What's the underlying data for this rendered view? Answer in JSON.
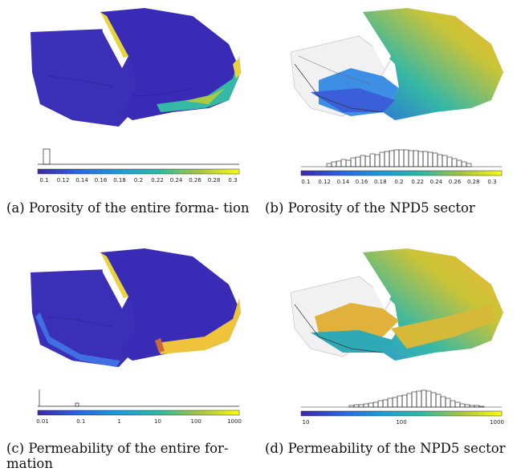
{
  "captions": {
    "a": "(a) Porosity of the entire forma- tion",
    "b": "(b) Porosity of the NPD5 sector",
    "c": "(c) Permeability of the entire for- mation",
    "d": "(d) Permeability of the NPD5 sector"
  },
  "colorbars": {
    "a": {
      "ticks": [
        "0.1",
        "0.12",
        "0.14",
        "0.16",
        "0.18",
        "0.2",
        "0.22",
        "0.24",
        "0.26",
        "0.28",
        "0.3"
      ]
    },
    "b": {
      "ticks": [
        "0.1",
        "0.12",
        "0.14",
        "0.16",
        "0.18",
        "0.2",
        "0.22",
        "0.24",
        "0.26",
        "0.28",
        "0.3"
      ]
    },
    "c": {
      "ticks": [
        "0.01",
        "0.1",
        "1",
        "10",
        "100",
        "1000"
      ]
    },
    "d": {
      "ticks": [
        "10",
        "100",
        "1000"
      ]
    }
  },
  "colors": {
    "low": "#3b1fb0",
    "mid": "#21a3a3",
    "high": "#f5dc2c"
  }
}
